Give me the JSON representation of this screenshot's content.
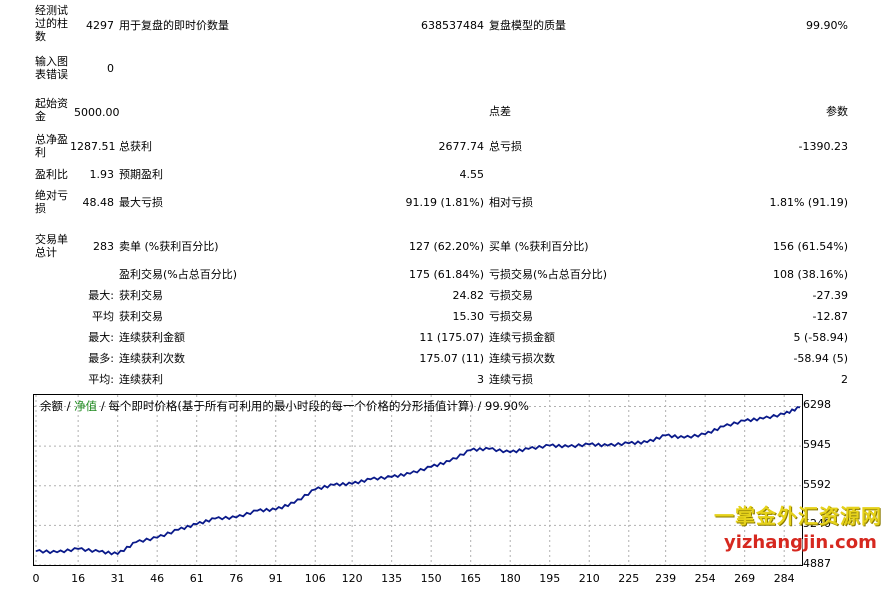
{
  "stats": {
    "bars_tested_label": "经测试过的柱数",
    "bars_tested_value": "4297",
    "ticks_label": "用于复盘的即时价数量",
    "ticks_value": "638537484",
    "quality_label": "复盘模型的质量",
    "quality_value": "99.90%",
    "errors_label": "输入图表错误",
    "errors_value": "0",
    "deposit_label": "起始资金",
    "deposit_value": "5000.00",
    "spread_label": "点差",
    "spread_value": "参数",
    "net_profit_label": "总净盈利",
    "net_profit_value": "1287.51",
    "gross_profit_label": "总获利",
    "gross_profit_value": "2677.74",
    "gross_loss_label": "总亏损",
    "gross_loss_value": "-1390.23",
    "profit_factor_label": "盈利比",
    "profit_factor_value": "1.93",
    "expected_payoff_label": "预期盈利",
    "expected_payoff_value": "4.55",
    "abs_dd_label": "绝对亏损",
    "abs_dd_value": "48.48",
    "max_dd_label": "最大亏损",
    "max_dd_value": "91.19 (1.81%)",
    "rel_dd_label": "相对亏损",
    "rel_dd_value": "1.81% (91.19)",
    "total_trades_label": "交易单总计",
    "total_trades_value": "283",
    "short_label": "卖单 (%获利百分比)",
    "short_value": "127 (62.20%)",
    "long_label": "买单 (%获利百分比)",
    "long_value": "156 (61.54%)",
    "profit_trades_label": "盈利交易(%占总百分比)",
    "profit_trades_value": "175 (61.84%)",
    "loss_trades_label": "亏损交易(%占总百分比)",
    "loss_trades_value": "108 (38.16%)",
    "largest_label": "最大:",
    "largest_profit_label": "获利交易",
    "largest_profit_value": "24.82",
    "largest_loss_label": "亏损交易",
    "largest_loss_value": "-27.39",
    "average_label": "平均",
    "average_profit_label": "获利交易",
    "average_profit_value": "15.30",
    "average_loss_label": "亏损交易",
    "average_loss_value": "-12.87",
    "max_label": "最大:",
    "max_consec_wins_label": "连续获利金额",
    "max_consec_wins_value": "11 (175.07)",
    "max_consec_losses_label": "连续亏损金额",
    "max_consec_losses_value": "5 (-58.94)",
    "most_label": "最多:",
    "most_consec_profit_label": "连续获利次数",
    "most_consec_profit_value": "175.07 (11)",
    "most_consec_loss_label": "连续亏损次数",
    "most_consec_loss_value": "-58.94 (5)",
    "avg_label": "平均:",
    "avg_consec_wins_label": "连续获利",
    "avg_consec_wins_value": "3",
    "avg_consec_losses_label": "连续亏损",
    "avg_consec_losses_value": "2"
  },
  "chart": {
    "legend_balance": "余额",
    "legend_sep1": " / ",
    "legend_equity": "净值",
    "legend_rest": " / 每个即时价格(基于所有可利用的最小时段的每一个价格的分形插值计算) / 99.90%",
    "colors": {
      "balance": "#0a1a8a",
      "equity": "#1f8a1f",
      "grid": "#b0b0b0"
    }
  },
  "chart_data": {
    "type": "line",
    "x_ticks": [
      0,
      16,
      31,
      46,
      61,
      76,
      91,
      106,
      120,
      135,
      150,
      165,
      180,
      195,
      210,
      225,
      239,
      254,
      269,
      284
    ],
    "y_ticks": [
      4887,
      5240,
      5592,
      5945,
      6298
    ],
    "xlim": [
      0,
      290
    ],
    "ylim": [
      4887,
      6400
    ],
    "series": [
      {
        "name": "余额",
        "x": [
          0,
          8,
          16,
          24,
          31,
          38,
          46,
          54,
          61,
          68,
          76,
          84,
          91,
          98,
          106,
          113,
          120,
          127,
          135,
          142,
          150,
          157,
          165,
          172,
          180,
          187,
          195,
          202,
          210,
          217,
          225,
          232,
          239,
          246,
          254,
          261,
          269,
          276,
          284,
          290
        ],
        "y": [
          5010,
          5000,
          5030,
          5005,
          4985,
          5090,
          5130,
          5200,
          5250,
          5300,
          5310,
          5370,
          5380,
          5440,
          5560,
          5600,
          5610,
          5650,
          5670,
          5700,
          5760,
          5810,
          5910,
          5920,
          5890,
          5920,
          5950,
          5940,
          5960,
          5950,
          5970,
          5980,
          6040,
          6020,
          6050,
          6120,
          6170,
          6190,
          6230,
          6290
        ]
      }
    ]
  },
  "watermark": {
    "line1": "一掌金外汇资源网",
    "line2": "yizhangjin.com"
  }
}
